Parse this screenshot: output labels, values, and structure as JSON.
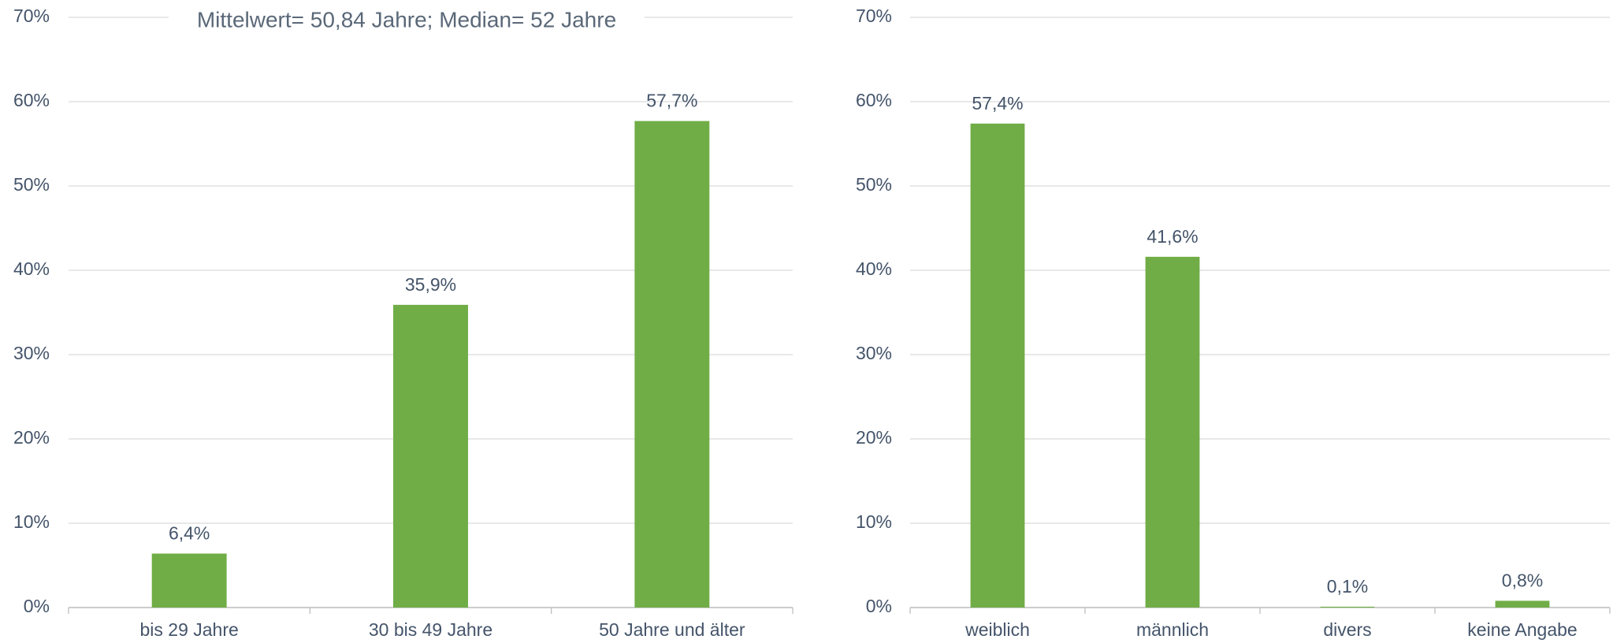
{
  "chart_data": [
    {
      "type": "bar",
      "annotation": "Mittelwert= 50,84 Jahre; Median= 52 Jahre",
      "categories": [
        "bis 29 Jahre",
        "30 bis 49 Jahre",
        "50 Jahre und älter"
      ],
      "values": [
        6.4,
        35.9,
        57.7
      ],
      "value_labels": [
        "6,4%",
        "35,9%",
        "57,7%"
      ],
      "color": "#70ad47",
      "ylim": [
        0,
        70
      ],
      "yticks": [
        {
          "value": 0,
          "label": "0%"
        },
        {
          "value": 10,
          "label": "10%"
        },
        {
          "value": 20,
          "label": "20%"
        },
        {
          "value": 30,
          "label": "30%"
        },
        {
          "value": 40,
          "label": "40%"
        },
        {
          "value": 50,
          "label": "50%"
        },
        {
          "value": 60,
          "label": "60%"
        },
        {
          "value": 70,
          "label": "70%"
        }
      ],
      "grid": true
    },
    {
      "type": "bar",
      "categories": [
        "weiblich",
        "männlich",
        "divers",
        "keine Angabe"
      ],
      "values": [
        57.4,
        41.6,
        0.1,
        0.8
      ],
      "value_labels": [
        "57,4%",
        "41,6%",
        "0,1%",
        "0,8%"
      ],
      "color": "#70ad47",
      "ylim": [
        0,
        70
      ],
      "yticks": [
        {
          "value": 0,
          "label": "0%"
        },
        {
          "value": 10,
          "label": "10%"
        },
        {
          "value": 20,
          "label": "20%"
        },
        {
          "value": 30,
          "label": "30%"
        },
        {
          "value": 40,
          "label": "40%"
        },
        {
          "value": 50,
          "label": "50%"
        },
        {
          "value": 60,
          "label": "60%"
        },
        {
          "value": 70,
          "label": "70%"
        }
      ],
      "grid": true
    }
  ]
}
